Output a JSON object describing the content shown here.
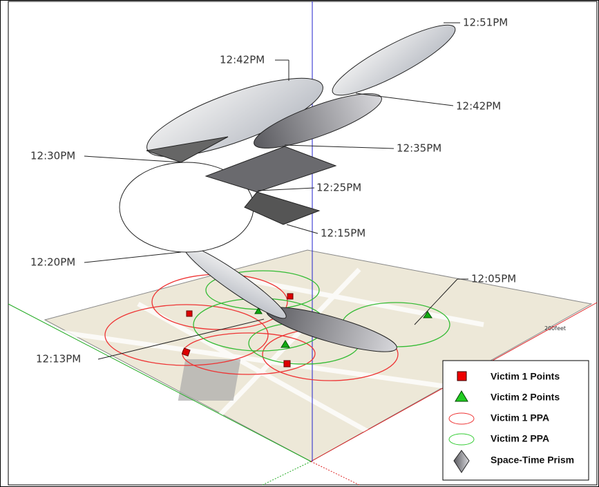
{
  "time_labels": [
    "12:51PM",
    "12:42PM",
    "12:42PM",
    "12:35PM",
    "12:30PM",
    "12:25PM",
    "12:15PM",
    "12:20PM",
    "12:05PM",
    "12:13PM"
  ],
  "map": {
    "scale_label": "200feet"
  },
  "legend": {
    "items": [
      "Victim 1 Points",
      "Victim 2 Points",
      "Victim 1 PPA",
      "Victim 2 PPA",
      "Space-Time Prism"
    ]
  }
}
